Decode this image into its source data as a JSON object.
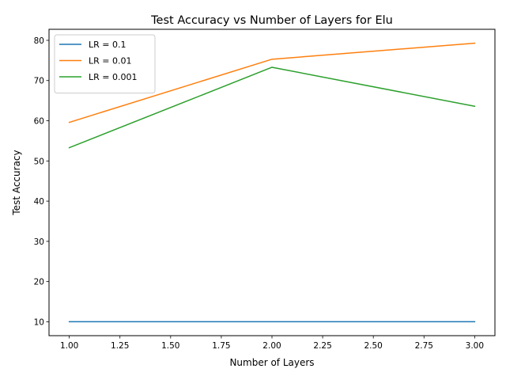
{
  "chart_data": {
    "type": "line",
    "title": "Test Accuracy vs Number of Layers for Elu",
    "xlabel": "Number of Layers",
    "ylabel": "Test Accuracy",
    "x": [
      1,
      2,
      3
    ],
    "xlim": [
      0.9,
      3.1
    ],
    "ylim": [
      6.54,
      82.75
    ],
    "xticks": [
      1.0,
      1.25,
      1.5,
      1.75,
      2.0,
      2.25,
      2.5,
      2.75,
      3.0
    ],
    "xtick_labels": [
      "1.00",
      "1.25",
      "1.50",
      "1.75",
      "2.00",
      "2.25",
      "2.50",
      "2.75",
      "3.00"
    ],
    "yticks": [
      10,
      20,
      30,
      40,
      50,
      60,
      70,
      80
    ],
    "ytick_labels": [
      "10",
      "20",
      "30",
      "40",
      "50",
      "60",
      "70",
      "80"
    ],
    "grid": false,
    "legend_position": "upper-left",
    "series": [
      {
        "name": "LR = 0.1",
        "values": [
          10.0,
          10.0,
          10.0
        ],
        "color": "#1f77b4"
      },
      {
        "name": "LR = 0.01",
        "values": [
          59.6,
          75.3,
          79.3
        ],
        "color": "#ff7f0e"
      },
      {
        "name": "LR = 0.001",
        "values": [
          53.3,
          73.3,
          63.6
        ],
        "color": "#2ca02c"
      }
    ]
  }
}
